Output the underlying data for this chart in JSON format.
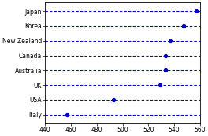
{
  "countries": [
    "Japan",
    "Korea",
    "New Zealand",
    "Canada",
    "Australia",
    "UK",
    "USA",
    "Italy"
  ],
  "values": [
    557,
    547,
    537,
    533,
    533,
    529,
    493,
    457
  ],
  "xlim": [
    440,
    560
  ],
  "xticks": [
    440,
    460,
    480,
    500,
    520,
    540,
    560
  ],
  "dot_color": "#0000cc",
  "line_color": "#0000cc",
  "bg_color": "#ffffff",
  "dot_size": 8,
  "line_width": 0.8,
  "font_size": 5.5,
  "tick_font_size": 5.5
}
